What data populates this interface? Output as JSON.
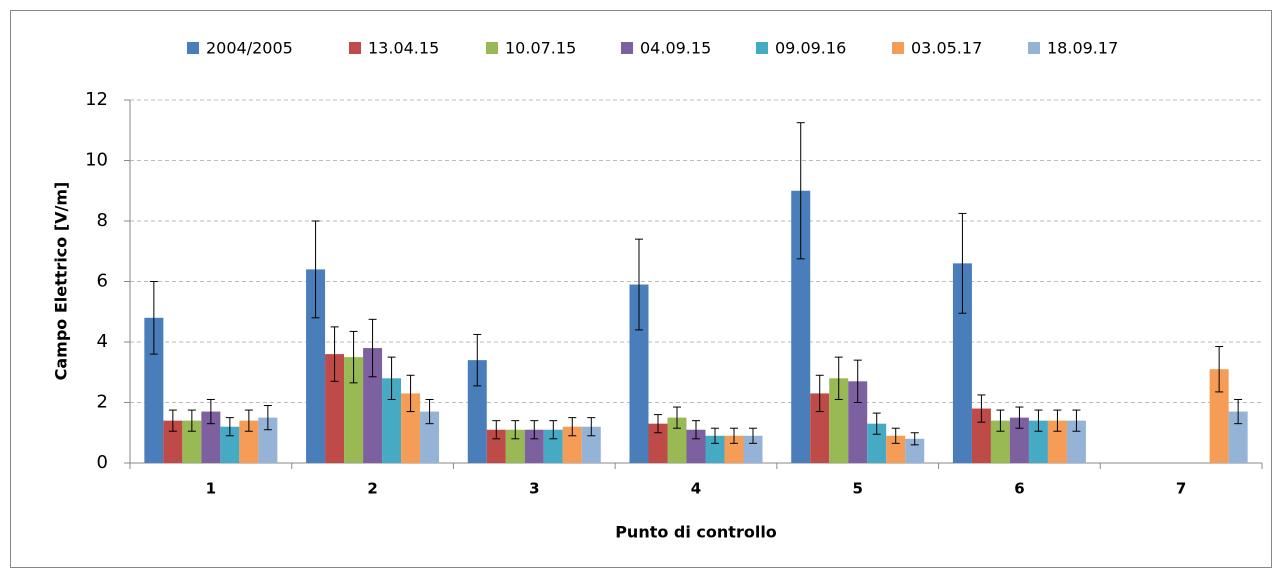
{
  "chart_data": {
    "type": "bar",
    "x_label": "Punto di controllo",
    "y_label": "Campo Elettrico [V/m]",
    "categories": [
      "1",
      "2",
      "3",
      "4",
      "5",
      "6",
      "7"
    ],
    "series": [
      {
        "name": "2004/2005",
        "color": "#4a7ebb",
        "values": [
          4.8,
          6.4,
          3.4,
          5.9,
          9.0,
          6.6,
          null
        ],
        "errors": [
          1.2,
          1.6,
          0.85,
          1.5,
          2.25,
          1.65,
          null
        ]
      },
      {
        "name": "13.04.15",
        "color": "#be4b48",
        "values": [
          1.4,
          3.6,
          1.1,
          1.3,
          2.3,
          1.8,
          null
        ],
        "errors": [
          0.35,
          0.9,
          0.3,
          0.3,
          0.6,
          0.45,
          null
        ]
      },
      {
        "name": "10.07.15",
        "color": "#98b954",
        "values": [
          1.4,
          3.5,
          1.1,
          1.5,
          2.8,
          1.4,
          null
        ],
        "errors": [
          0.35,
          0.85,
          0.3,
          0.35,
          0.7,
          0.35,
          null
        ]
      },
      {
        "name": "04.09.15",
        "color": "#7d60a0",
        "values": [
          1.7,
          3.8,
          1.1,
          1.1,
          2.7,
          1.5,
          null
        ],
        "errors": [
          0.4,
          0.95,
          0.3,
          0.3,
          0.7,
          0.35,
          null
        ]
      },
      {
        "name": "09.09.16",
        "color": "#46aac5",
        "values": [
          1.2,
          2.8,
          1.1,
          0.9,
          1.3,
          1.4,
          null
        ],
        "errors": [
          0.3,
          0.7,
          0.3,
          0.25,
          0.35,
          0.35,
          null
        ]
      },
      {
        "name": "03.05.17",
        "color": "#f59d56",
        "values": [
          1.4,
          2.3,
          1.2,
          0.9,
          0.9,
          1.4,
          3.1
        ],
        "errors": [
          0.35,
          0.6,
          0.3,
          0.25,
          0.25,
          0.35,
          0.75
        ]
      },
      {
        "name": "18.09.17",
        "color": "#95b3d7",
        "values": [
          1.5,
          1.7,
          1.2,
          0.9,
          0.8,
          1.4,
          1.7
        ],
        "errors": [
          0.4,
          0.4,
          0.3,
          0.25,
          0.2,
          0.35,
          0.4
        ]
      }
    ],
    "ylim": [
      0,
      12
    ],
    "yticks": [
      0,
      2,
      4,
      6,
      8,
      10,
      12
    ],
    "grid": true,
    "legend": "top"
  }
}
